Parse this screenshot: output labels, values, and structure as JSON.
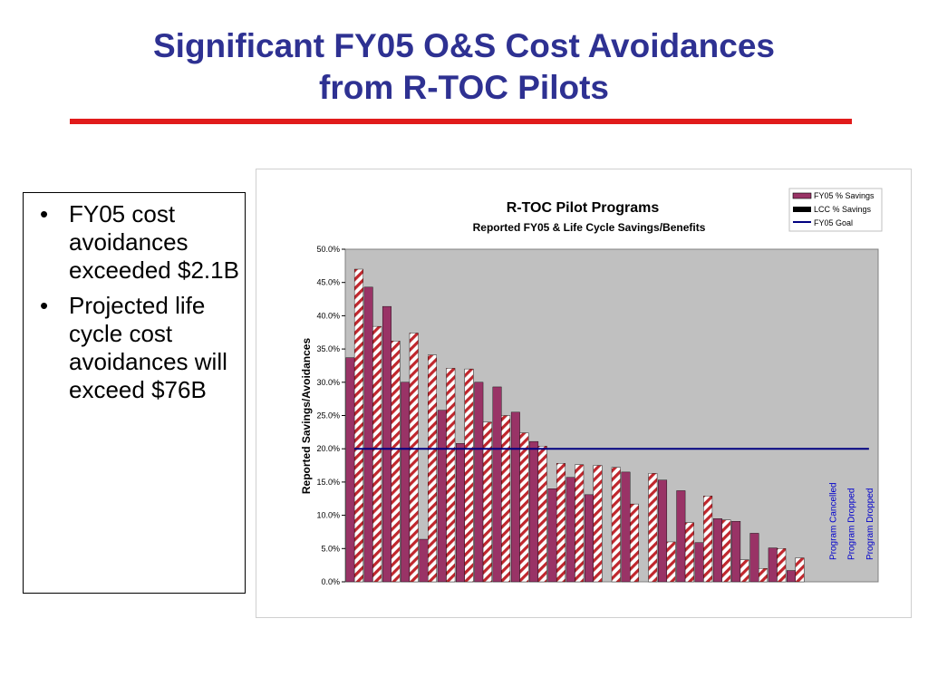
{
  "slide": {
    "title_line1": "Significant FY05 O&S Cost Avoidances",
    "title_line2": "from R-TOC Pilots",
    "bullets": [
      "FY05 cost avoidances exceeded $2.1B",
      "Projected life cycle cost avoidances will exceed $76B"
    ],
    "bullet_marker": "•"
  },
  "colors": {
    "title": "#2E3192",
    "rule": "#E11B1B",
    "plot_bg": "#C0C0C0",
    "fy05_bar": "#993366",
    "lcc_hatch": "#C0272D",
    "goal_line": "#000080",
    "annotation": "#0000CC"
  },
  "chart_data": {
    "type": "bar",
    "title": "R-TOC Pilot Programs",
    "subtitle": "Reported FY05 & Life Cycle Savings/Benefits",
    "xlabel": "",
    "ylabel": "Reported Savings/Avoidances",
    "ylim": [
      0,
      0.5
    ],
    "yticks": [
      "0.0%",
      "5.0%",
      "10.0%",
      "15.0%",
      "20.0%",
      "25.0%",
      "30.0%",
      "35.0%",
      "40.0%",
      "45.0%",
      "50.0%"
    ],
    "grid": false,
    "legend_position": "top-right",
    "category_count": 29,
    "series": [
      {
        "name": "FY05 % Savings",
        "values": [
          0.337,
          0.443,
          0.414,
          0.3,
          0.064,
          0.258,
          0.208,
          0.3,
          0.293,
          0.255,
          0.211,
          0.14,
          0.157,
          0.131,
          0.0,
          0.165,
          0.0,
          0.153,
          0.137,
          0.059,
          0.095,
          0.091,
          0.073,
          0.051,
          0.017,
          0,
          0,
          0,
          0
        ]
      },
      {
        "name": "LCC % Savings",
        "values": [
          0.47,
          0.384,
          0.362,
          0.374,
          0.341,
          0.321,
          0.32,
          0.24,
          0.25,
          0.224,
          0.204,
          0.178,
          0.176,
          0.175,
          0.172,
          0.117,
          0.163,
          0.06,
          0.089,
          0.129,
          0.093,
          0.033,
          0.02,
          0.05,
          0.036,
          0,
          0,
          0,
          0
        ]
      }
    ],
    "goal": {
      "name": "FY05 Goal",
      "value": 0.2
    },
    "annotations": [
      {
        "category_index": 26,
        "text": "Program Cancelled"
      },
      {
        "category_index": 27,
        "text": "Program Dropped"
      },
      {
        "category_index": 28,
        "text": "Program Dropped"
      }
    ]
  }
}
